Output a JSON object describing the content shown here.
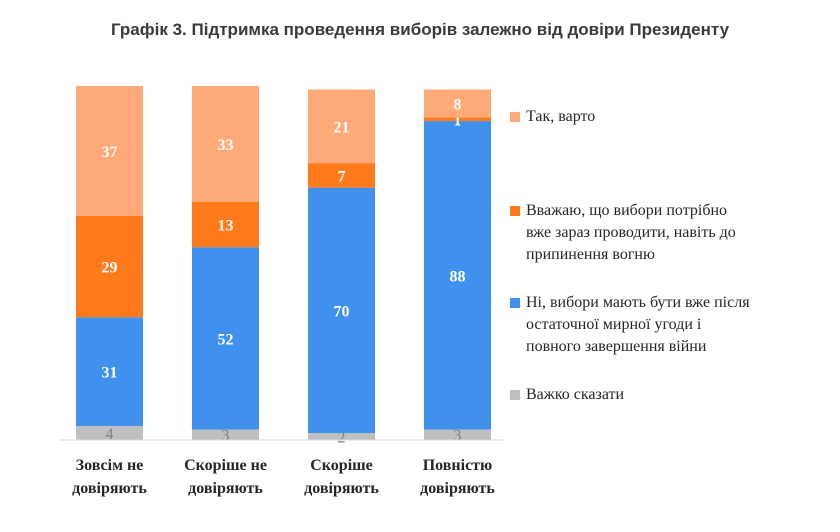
{
  "chart_data": {
    "type": "bar",
    "stacked": true,
    "title": "Графік 3. Підтримка проведення виборів залежно від довіри Президенту",
    "categories": [
      [
        "Зовсім не",
        "довіряють"
      ],
      [
        "Скоріше не",
        "довіряють"
      ],
      [
        "Скоріше",
        "довіряють"
      ],
      [
        "Повністю",
        "довіряють"
      ]
    ],
    "series": [
      {
        "name": "Важко сказати",
        "color": "#bfbfbf",
        "label_color": "#7f7f7f",
        "values": [
          4,
          3,
          2,
          3
        ]
      },
      {
        "name": "Ні, вибори мають бути вже після остаточної мирної угоди і повного завершення війни",
        "color": "#3f91ed",
        "label_color": "#ffffff",
        "values": [
          31,
          52,
          70,
          88
        ]
      },
      {
        "name": "Вважаю, що вибори потрібно вже зараз проводити, навіть до припинення вогню",
        "color": "#ff7a1a",
        "label_color": "#ffffff",
        "values": [
          29,
          13,
          7,
          1
        ]
      },
      {
        "name": "Так, варто",
        "color": "#ffa978",
        "label_color": "#ffffff",
        "values": [
          37,
          33,
          21,
          8
        ]
      }
    ],
    "ylim": [
      0,
      101
    ],
    "grid": false,
    "legend_position": "right"
  },
  "legend": [
    {
      "lines": [
        "Так, варто"
      ],
      "color": "#ffa978"
    },
    {
      "lines": [
        "Вважаю, що вибори потрібно",
        "вже зараз проводити, навіть до",
        "припинення вогню"
      ],
      "color": "#ff7a1a"
    },
    {
      "lines": [
        "Ні, вибори мають бути вже після",
        "остаточної мирної угоди і",
        "повного завершення війни"
      ],
      "color": "#3f91ed"
    },
    {
      "lines": [
        "Важко сказати"
      ],
      "color": "#bfbfbf"
    }
  ]
}
